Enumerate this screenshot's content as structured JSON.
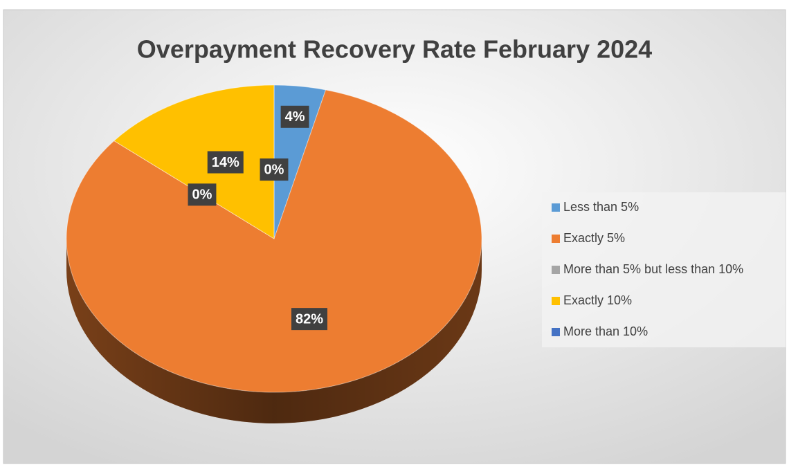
{
  "chart_data": {
    "type": "pie",
    "title": "Overpayment Recovery Rate February 2024",
    "categories": [
      "Less than 5%",
      "Exactly 5%",
      "More than 5% but less than 10%",
      "Exactly 10%",
      "More than 10%"
    ],
    "values": [
      4,
      82,
      0,
      14,
      0
    ],
    "value_labels": [
      "4%",
      "82%",
      "0%",
      "14%",
      "0%"
    ],
    "colors": [
      "#5b9bd5",
      "#ed7d31",
      "#a5a5a5",
      "#ffc000",
      "#4472c4"
    ],
    "legend": "right"
  }
}
